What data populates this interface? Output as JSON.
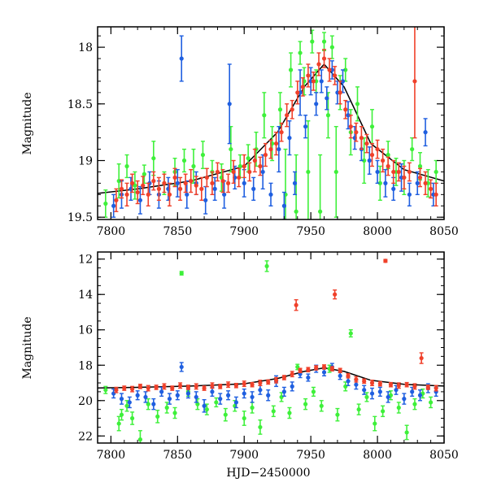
{
  "figure": {
    "xlabel": "HJD−2450000"
  },
  "colors": {
    "red": "#f0402a",
    "blue": "#1f5fe0",
    "green": "#3ef03a",
    "fit_line": "#000000",
    "axes": "#000000"
  },
  "chart_data": [
    {
      "type": "scatter",
      "panel": "top",
      "ylabel": "Magnitude",
      "xlabel": "",
      "xlim": [
        7790,
        8050
      ],
      "ylim": [
        19.52,
        17.82
      ],
      "y_inverted": true,
      "x_ticks": [
        7800,
        7850,
        7900,
        7950,
        8000,
        8050
      ],
      "x_tick_labels": [
        "7800",
        "7850",
        "7900",
        "7950",
        "8000",
        "8050"
      ],
      "y_ticks": [
        18,
        18.5,
        19,
        19.5
      ],
      "y_tick_labels": [
        "18",
        "18.5",
        "19",
        "19.5"
      ],
      "errorbars": true,
      "grid": false,
      "trend_line": {
        "color": "#000000",
        "x": [
          7790,
          7820,
          7860,
          7900,
          7925,
          7945,
          7960,
          7975,
          7995,
          8020,
          8050
        ],
        "y": [
          19.29,
          19.25,
          19.18,
          19.05,
          18.75,
          18.35,
          18.15,
          18.35,
          18.85,
          19.08,
          19.18
        ]
      },
      "series": [
        {
          "color": "#3ef03a",
          "x": [
            7796,
            7806,
            7812,
            7818,
            7825,
            7832,
            7840,
            7848,
            7855,
            7862,
            7869,
            7876,
            7883,
            7890,
            7897,
            7903,
            7909,
            7915,
            7921,
            7927,
            7931,
            7935,
            7939,
            7942,
            7945,
            7948,
            7951,
            7954,
            7957,
            7960,
            7963,
            7966,
            7969,
            7972,
            7976,
            7980,
            7985,
            7990,
            7996,
            8002,
            8008,
            8014,
            8020,
            8026,
            8032,
            8038,
            8044
          ],
          "y": [
            19.38,
            19.18,
            19.05,
            19.22,
            19.12,
            18.98,
            19.2,
            19.1,
            19.0,
            19.05,
            18.95,
            19.1,
            19.15,
            18.9,
            19.05,
            18.98,
            18.9,
            18.6,
            18.85,
            18.55,
            19.3,
            18.2,
            19.45,
            18.05,
            18.3,
            19.1,
            17.95,
            18.3,
            19.45,
            17.95,
            18.6,
            18.0,
            19.1,
            18.4,
            18.2,
            18.75,
            18.5,
            19.0,
            18.7,
            19.2,
            18.95,
            19.1,
            19.15,
            18.9,
            19.05,
            19.2,
            19.1
          ],
          "yerr": [
            0.12,
            0.15,
            0.1,
            0.12,
            0.08,
            0.15,
            0.1,
            0.12,
            0.1,
            0.15,
            0.12,
            0.1,
            0.12,
            0.2,
            0.1,
            0.12,
            0.15,
            0.2,
            0.15,
            0.15,
            0.4,
            0.15,
            0.5,
            0.1,
            0.12,
            0.45,
            0.1,
            0.1,
            0.5,
            0.08,
            0.2,
            0.1,
            0.4,
            0.15,
            0.1,
            0.2,
            0.15,
            0.2,
            0.15,
            0.15,
            0.12,
            0.12,
            0.15,
            0.1,
            0.12,
            0.12,
            0.1
          ]
        },
        {
          "color": "#1f5fe0",
          "x": [
            7802,
            7808,
            7815,
            7822,
            7829,
            7836,
            7843,
            7850,
            7853,
            7857,
            7864,
            7871,
            7878,
            7885,
            7889,
            7893,
            7900,
            7907,
            7914,
            7920,
            7926,
            7930,
            7934,
            7938,
            7942,
            7946,
            7950,
            7954,
            7958,
            7962,
            7966,
            7970,
            7974,
            7978,
            7983,
            7988,
            7994,
            8000,
            8006,
            8012,
            8018,
            8024,
            8030,
            8036,
            8042
          ],
          "y": [
            19.4,
            19.3,
            19.25,
            19.35,
            19.2,
            19.3,
            19.25,
            19.2,
            18.1,
            19.3,
            19.2,
            19.35,
            19.25,
            19.3,
            18.5,
            19.15,
            19.2,
            19.25,
            19.1,
            19.3,
            18.9,
            19.4,
            18.8,
            19.2,
            18.4,
            18.7,
            18.3,
            18.5,
            18.3,
            18.45,
            18.2,
            18.4,
            18.3,
            18.6,
            18.8,
            18.9,
            19.0,
            19.1,
            19.2,
            19.25,
            19.15,
            19.3,
            19.2,
            18.75,
            19.3
          ],
          "yerr": [
            0.1,
            0.12,
            0.1,
            0.12,
            0.1,
            0.12,
            0.1,
            0.12,
            0.2,
            0.12,
            0.1,
            0.12,
            0.1,
            0.12,
            0.35,
            0.1,
            0.12,
            0.1,
            0.15,
            0.1,
            0.2,
            0.12,
            0.15,
            0.1,
            0.2,
            0.1,
            0.12,
            0.1,
            0.1,
            0.1,
            0.08,
            0.1,
            0.1,
            0.12,
            0.1,
            0.1,
            0.12,
            0.1,
            0.12,
            0.1,
            0.12,
            0.1,
            0.1,
            0.12,
            0.1
          ]
        },
        {
          "color": "#f0402a",
          "x": [
            7804,
            7808,
            7812,
            7816,
            7820,
            7824,
            7828,
            7832,
            7836,
            7840,
            7844,
            7848,
            7852,
            7856,
            7860,
            7864,
            7868,
            7872,
            7876,
            7880,
            7884,
            7888,
            7892,
            7896,
            7900,
            7904,
            7908,
            7912,
            7916,
            7920,
            7924,
            7928,
            7932,
            7936,
            7940,
            7944,
            7948,
            7952,
            7956,
            7960,
            7964,
            7968,
            7972,
            7976,
            7980,
            7984,
            7988,
            7992,
            7996,
            8000,
            8004,
            8008,
            8012,
            8016,
            8020,
            8024,
            8028,
            8032,
            8036,
            8040,
            8044
          ],
          "y": [
            19.35,
            19.25,
            19.3,
            19.2,
            19.28,
            19.22,
            19.3,
            19.18,
            19.25,
            19.2,
            19.3,
            19.15,
            19.25,
            19.2,
            19.18,
            19.22,
            19.25,
            19.15,
            19.2,
            19.1,
            19.18,
            19.2,
            19.1,
            19.15,
            19.05,
            19.1,
            19.0,
            19.05,
            18.95,
            18.9,
            18.85,
            18.75,
            18.6,
            18.55,
            18.4,
            18.35,
            18.25,
            18.3,
            18.15,
            18.1,
            18.2,
            18.25,
            18.4,
            18.55,
            18.7,
            18.75,
            18.8,
            18.85,
            18.95,
            18.9,
            19.0,
            19.05,
            19.1,
            19.1,
            19.15,
            19.1,
            18.3,
            19.15,
            19.2,
            19.25,
            19.3
          ],
          "yerr": [
            0.1,
            0.08,
            0.1,
            0.08,
            0.1,
            0.08,
            0.1,
            0.08,
            0.1,
            0.08,
            0.1,
            0.08,
            0.1,
            0.08,
            0.1,
            0.08,
            0.1,
            0.08,
            0.1,
            0.08,
            0.1,
            0.08,
            0.1,
            0.08,
            0.1,
            0.08,
            0.1,
            0.08,
            0.1,
            0.08,
            0.1,
            0.08,
            0.1,
            0.08,
            0.1,
            0.08,
            0.1,
            0.08,
            0.1,
            0.08,
            0.1,
            0.08,
            0.1,
            0.08,
            0.1,
            0.08,
            0.1,
            0.08,
            0.1,
            0.08,
            0.1,
            0.08,
            0.1,
            0.08,
            0.1,
            0.08,
            0.5,
            0.08,
            0.1,
            0.08,
            0.1
          ]
        }
      ]
    },
    {
      "type": "scatter",
      "panel": "bottom",
      "ylabel": "Magnitude",
      "xlabel": "HJD−2450000",
      "xlim": [
        7790,
        8050
      ],
      "ylim": [
        22.4,
        11.6
      ],
      "y_inverted": true,
      "x_ticks": [
        7800,
        7850,
        7900,
        7950,
        8000,
        8050
      ],
      "x_tick_labels": [
        "7800",
        "7850",
        "7900",
        "7950",
        "8000",
        "8050"
      ],
      "y_ticks": [
        12,
        14,
        16,
        18,
        20,
        22
      ],
      "y_tick_labels": [
        "12",
        "14",
        "16",
        "18",
        "20",
        "22"
      ],
      "errorbars": true,
      "grid": false,
      "trend_line": {
        "color": "#000000",
        "x": [
          7790,
          7820,
          7860,
          7900,
          7925,
          7945,
          7960,
          7975,
          7995,
          8020,
          8050
        ],
        "y": [
          19.29,
          19.25,
          19.18,
          19.05,
          18.75,
          18.35,
          18.15,
          18.35,
          18.85,
          19.08,
          19.18
        ]
      },
      "series": [
        {
          "color": "#3ef03a",
          "x": [
            7796,
            7806,
            7808,
            7812,
            7816,
            7822,
            7828,
            7835,
            7842,
            7848,
            7853,
            7858,
            7865,
            7872,
            7879,
            7886,
            7893,
            7900,
            7906,
            7912,
            7917,
            7922,
            7928,
            7934,
            7940,
            7946,
            7952,
            7958,
            7964,
            7970,
            7976,
            7980,
            7986,
            7992,
            7998,
            8004,
            8010,
            8016,
            8022,
            8028,
            8034,
            8040
          ],
          "y": [
            19.4,
            21.3,
            20.8,
            20.3,
            21.0,
            22.2,
            20.2,
            20.9,
            20.4,
            20.7,
            12.8,
            19.5,
            20.2,
            20.5,
            20.1,
            20.8,
            20.3,
            21.0,
            20.4,
            21.5,
            12.4,
            20.6,
            19.8,
            20.7,
            18.1,
            20.2,
            19.5,
            20.3,
            18.2,
            20.8,
            19.2,
            16.2,
            20.5,
            19.8,
            21.3,
            20.6,
            19.7,
            20.4,
            21.8,
            20.2,
            19.6,
            20.1
          ],
          "yerr": [
            0.2,
            0.4,
            0.3,
            0.3,
            0.35,
            0.5,
            0.3,
            0.35,
            0.3,
            0.3,
            0.1,
            0.25,
            0.3,
            0.3,
            0.25,
            0.35,
            0.3,
            0.4,
            0.3,
            0.4,
            0.3,
            0.3,
            0.25,
            0.3,
            0.15,
            0.3,
            0.25,
            0.3,
            0.2,
            0.35,
            0.25,
            0.2,
            0.3,
            0.25,
            0.4,
            0.3,
            0.25,
            0.3,
            0.4,
            0.3,
            0.25,
            0.3
          ]
        },
        {
          "color": "#1f5fe0",
          "x": [
            7802,
            7808,
            7814,
            7820,
            7826,
            7832,
            7838,
            7844,
            7850,
            7853,
            7858,
            7864,
            7870,
            7876,
            7882,
            7888,
            7894,
            7900,
            7906,
            7912,
            7918,
            7924,
            7930,
            7936,
            7942,
            7948,
            7954,
            7960,
            7966,
            7972,
            7978,
            7984,
            7990,
            7996,
            8002,
            8008,
            8014,
            8020,
            8026,
            8032,
            8038,
            8044
          ],
          "y": [
            19.6,
            19.9,
            20.1,
            19.7,
            19.8,
            20.2,
            19.5,
            19.9,
            19.7,
            18.1,
            19.6,
            19.8,
            20.3,
            19.5,
            19.9,
            19.7,
            20.1,
            19.6,
            19.8,
            19.4,
            19.7,
            18.9,
            19.5,
            19.2,
            18.5,
            18.7,
            18.2,
            18.4,
            18.1,
            18.6,
            18.9,
            19.1,
            19.4,
            19.6,
            19.5,
            19.8,
            19.4,
            19.9,
            19.5,
            19.7,
            19.3,
            19.5
          ],
          "yerr": [
            0.25,
            0.3,
            0.3,
            0.25,
            0.3,
            0.3,
            0.25,
            0.3,
            0.25,
            0.25,
            0.25,
            0.3,
            0.35,
            0.25,
            0.3,
            0.25,
            0.3,
            0.25,
            0.3,
            0.25,
            0.3,
            0.3,
            0.25,
            0.25,
            0.2,
            0.2,
            0.2,
            0.2,
            0.2,
            0.2,
            0.25,
            0.25,
            0.25,
            0.3,
            0.25,
            0.3,
            0.25,
            0.3,
            0.25,
            0.3,
            0.25,
            0.25
          ]
        },
        {
          "color": "#f0402a",
          "x": [
            7804,
            7810,
            7816,
            7822,
            7828,
            7834,
            7840,
            7846,
            7852,
            7858,
            7864,
            7870,
            7876,
            7882,
            7888,
            7894,
            7900,
            7906,
            7912,
            7918,
            7924,
            7930,
            7936,
            7939,
            7942,
            7948,
            7954,
            7960,
            7966,
            7968,
            7972,
            7978,
            7984,
            7990,
            7996,
            8002,
            8006,
            8010,
            8016,
            8022,
            8028,
            8033,
            8038,
            8044
          ],
          "y": [
            19.4,
            19.3,
            19.35,
            19.2,
            19.3,
            19.25,
            19.2,
            19.3,
            19.15,
            19.25,
            19.2,
            19.3,
            19.15,
            19.2,
            19.1,
            19.15,
            19.05,
            19.1,
            19.0,
            18.95,
            18.85,
            18.7,
            18.5,
            14.6,
            18.3,
            18.25,
            18.15,
            18.1,
            18.2,
            14.0,
            18.3,
            18.6,
            18.8,
            18.9,
            19.0,
            19.05,
            12.1,
            19.1,
            19.15,
            19.1,
            19.2,
            17.6,
            19.25,
            19.3
          ],
          "yerr": [
            0.15,
            0.12,
            0.15,
            0.12,
            0.15,
            0.12,
            0.15,
            0.12,
            0.15,
            0.12,
            0.15,
            0.12,
            0.15,
            0.12,
            0.15,
            0.12,
            0.15,
            0.12,
            0.15,
            0.12,
            0.15,
            0.12,
            0.15,
            0.3,
            0.12,
            0.12,
            0.12,
            0.12,
            0.12,
            0.25,
            0.12,
            0.12,
            0.15,
            0.12,
            0.15,
            0.12,
            0.08,
            0.12,
            0.15,
            0.12,
            0.15,
            0.3,
            0.12,
            0.15
          ]
        }
      ]
    }
  ]
}
